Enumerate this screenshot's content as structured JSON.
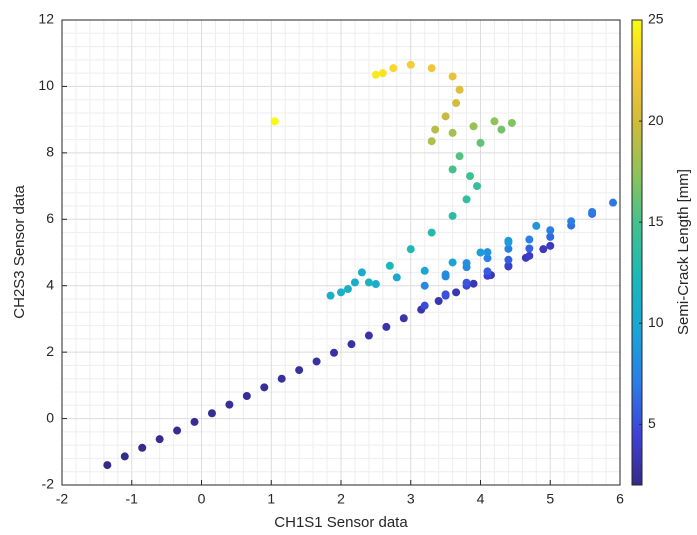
{
  "chart_data": {
    "type": "scatter",
    "x_label": "CH1S1 Sensor data",
    "y_label": "CH2S3 Sensor data",
    "colorbar_label": "Semi-Crack Length [mm]",
    "xlim": [
      -2,
      6
    ],
    "xticks": [
      -2,
      -1,
      0,
      1,
      2,
      3,
      4,
      5,
      6
    ],
    "ylim": [
      -2,
      12
    ],
    "yticks": [
      -2,
      0,
      2,
      4,
      6,
      8,
      10,
      12
    ],
    "clim": [
      2,
      25
    ],
    "cticks": [
      5,
      10,
      15,
      20,
      25
    ],
    "grid": true,
    "minor_grid": true,
    "colormap": [
      "#352a87",
      "#3e42d8",
      "#2a7ee6",
      "#1aa5d6",
      "#1bb8b8",
      "#40c190",
      "#8cc35a",
      "#d0ba3e",
      "#f6c83a",
      "#f9fb0e"
    ],
    "x": [
      -1.35,
      -1.1,
      -0.85,
      -0.6,
      -0.35,
      -0.1,
      0.15,
      0.4,
      0.65,
      0.9,
      1.15,
      1.4,
      1.65,
      1.9,
      2.15,
      2.4,
      2.65,
      2.9,
      3.15,
      3.4,
      3.65,
      3.9,
      4.15,
      4.4,
      4.65,
      4.9,
      5.0,
      4.7,
      4.4,
      4.1,
      3.8,
      3.5,
      3.2,
      3.5,
      3.8,
      4.1,
      4.4,
      4.7,
      5.0,
      5.3,
      5.6,
      5.9,
      5.6,
      5.3,
      5.0,
      4.7,
      4.4,
      4.1,
      3.8,
      3.5,
      3.2,
      3.5,
      3.8,
      4.1,
      4.4,
      4.8,
      4.4,
      4.0,
      3.6,
      3.2,
      2.8,
      2.5,
      2.3,
      2.2,
      2.0,
      1.85,
      2.1,
      2.4,
      2.7,
      3.0,
      3.3,
      3.6,
      3.8,
      3.95,
      3.85,
      3.6,
      3.7,
      4.0,
      4.3,
      4.45,
      4.2,
      3.9,
      3.6,
      3.3,
      3.35,
      3.5,
      3.65,
      3.7,
      3.6,
      3.3,
      3.0,
      2.75,
      2.6,
      2.5,
      1.05
    ],
    "y": [
      -1.4,
      -1.14,
      -0.88,
      -0.62,
      -0.36,
      -0.1,
      0.16,
      0.42,
      0.68,
      0.94,
      1.2,
      1.46,
      1.72,
      1.98,
      2.24,
      2.5,
      2.76,
      3.02,
      3.28,
      3.54,
      3.8,
      4.06,
      4.32,
      4.58,
      4.84,
      5.1,
      5.2,
      4.9,
      4.6,
      4.3,
      4.0,
      3.7,
      3.4,
      3.74,
      4.09,
      4.43,
      4.78,
      5.12,
      5.47,
      5.81,
      6.16,
      6.5,
      6.22,
      5.94,
      5.67,
      5.39,
      5.11,
      4.83,
      4.56,
      4.28,
      4.0,
      4.34,
      4.68,
      5.01,
      5.35,
      5.8,
      5.3,
      5.0,
      4.7,
      4.45,
      4.25,
      4.05,
      4.4,
      4.1,
      3.8,
      3.7,
      3.9,
      4.1,
      4.6,
      5.1,
      5.6,
      6.1,
      6.6,
      7.0,
      7.3,
      7.5,
      7.9,
      8.3,
      8.7,
      8.9,
      8.95,
      8.8,
      8.6,
      8.35,
      8.7,
      9.1,
      9.5,
      9.9,
      10.3,
      10.55,
      10.65,
      10.55,
      10.4,
      10.35,
      8.95
    ],
    "c": [
      2.0,
      2.1,
      2.1,
      2.2,
      2.3,
      2.3,
      2.4,
      2.5,
      2.5,
      2.6,
      2.7,
      2.7,
      2.8,
      2.9,
      2.9,
      3.0,
      3.1,
      3.1,
      3.2,
      3.3,
      3.3,
      3.4,
      3.5,
      3.5,
      3.6,
      3.7,
      3.8,
      4.0,
      4.2,
      4.4,
      4.6,
      4.8,
      5.0,
      5.2,
      5.4,
      5.6,
      5.8,
      6.0,
      6.2,
      6.4,
      6.6,
      6.8,
      7.0,
      7.1,
      7.2,
      7.3,
      7.4,
      7.5,
      7.6,
      7.7,
      7.8,
      8.0,
      8.2,
      8.4,
      8.6,
      8.8,
      9.0,
      9.3,
      9.6,
      9.9,
      10.1,
      10.3,
      10.5,
      10.7,
      10.9,
      11.0,
      11.3,
      11.7,
      12.1,
      12.5,
      12.9,
      13.3,
      13.7,
      14.1,
      14.5,
      15.0,
      15.5,
      16.0,
      16.5,
      17.0,
      17.4,
      17.8,
      18.2,
      18.6,
      19.0,
      19.6,
      20.2,
      20.8,
      21.4,
      22.0,
      22.6,
      23.2,
      23.8,
      24.2,
      25
    ]
  }
}
